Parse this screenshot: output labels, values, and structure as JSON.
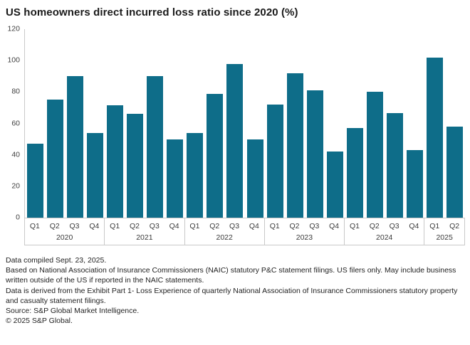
{
  "title": "US homeowners direct incurred loss ratio since 2020 (%)",
  "chart_data": {
    "type": "bar",
    "title": "US homeowners direct incurred loss ratio since 2020 (%)",
    "xlabel": "",
    "ylabel": "",
    "ylim": [
      0,
      120
    ],
    "yticks": [
      0,
      20,
      40,
      60,
      80,
      100,
      120
    ],
    "grid": false,
    "legend": "none",
    "bar_color": "#0e6d89",
    "groups": [
      {
        "year": "2020",
        "quarters": [
          "Q1",
          "Q2",
          "Q3",
          "Q4"
        ],
        "values": [
          47,
          75,
          90,
          54
        ]
      },
      {
        "year": "2021",
        "quarters": [
          "Q1",
          "Q2",
          "Q3",
          "Q4"
        ],
        "values": [
          71.5,
          66,
          90,
          50
        ]
      },
      {
        "year": "2022",
        "quarters": [
          "Q1",
          "Q2",
          "Q3",
          "Q4"
        ],
        "values": [
          54,
          79,
          98,
          50
        ]
      },
      {
        "year": "2023",
        "quarters": [
          "Q1",
          "Q2",
          "Q3",
          "Q4"
        ],
        "values": [
          72,
          92,
          81,
          42
        ]
      },
      {
        "year": "2024",
        "quarters": [
          "Q1",
          "Q2",
          "Q3",
          "Q4"
        ],
        "values": [
          57,
          80,
          66.5,
          43
        ]
      },
      {
        "year": "2025",
        "quarters": [
          "Q1",
          "Q2"
        ],
        "values": [
          102,
          58
        ]
      }
    ]
  },
  "footer": {
    "lines": [
      "Data compiled Sept. 23, 2025.",
      "Based on National Association of Insurance Commissioners (NAIC) statutory P&C statement filings. US filers only. May include business written outside of the US if reported in the NAIC statements.",
      "Data is derived from the Exhibit Part 1- Loss Experience of quarterly National Association of Insurance Commissioners statutory property and casualty statement filings.",
      "Source: S&P Global Market Intelligence.",
      "© 2025 S&P Global."
    ]
  },
  "colors": {
    "bar": "#0e6d89",
    "axis_line": "#c9c9c9",
    "text": "#1a1a1a"
  }
}
